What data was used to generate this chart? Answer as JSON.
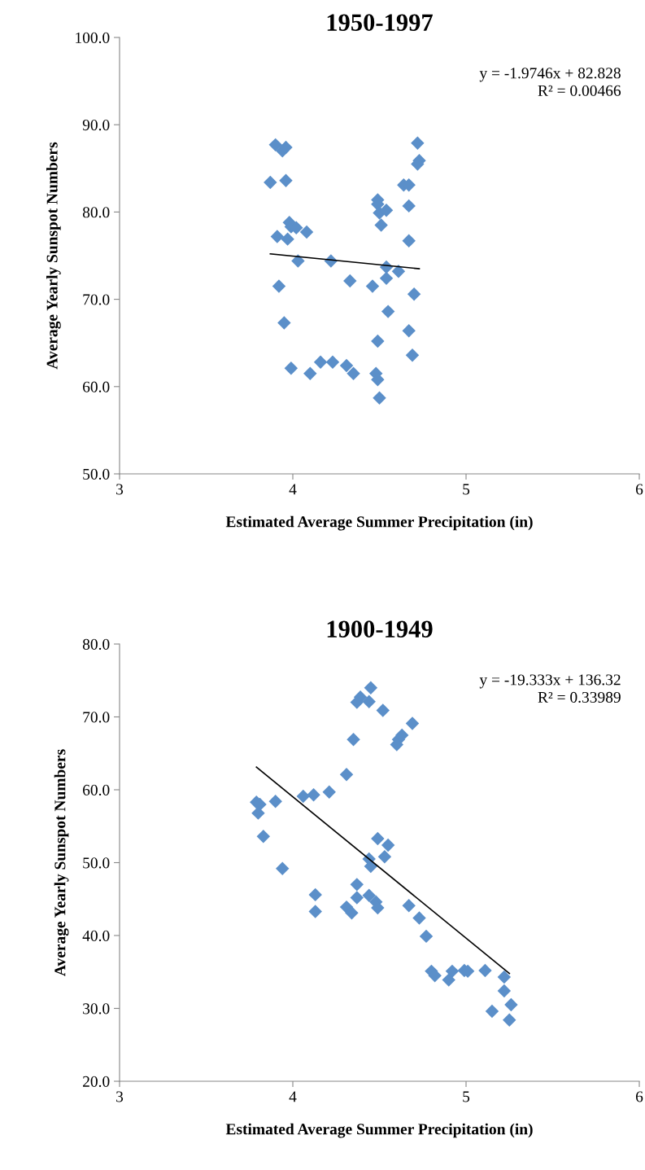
{
  "chart_data": [
    {
      "type": "scatter",
      "title": "1950-1997",
      "xlabel": "Estimated Average Summer Precipitation (in)",
      "ylabel": "Average Yearly Sunspot Numbers",
      "xlim": [
        3,
        6
      ],
      "xticks": [
        3,
        4,
        5,
        6
      ],
      "ylim": [
        50,
        100
      ],
      "yticks": [
        {
          "value": 50,
          "label": "50.0"
        },
        {
          "value": 60,
          "label": "60.0"
        },
        {
          "value": 70,
          "label": "70.0"
        },
        {
          "value": 80,
          "label": "80.0"
        },
        {
          "value": 90,
          "label": "90.0"
        },
        {
          "value": 100,
          "label": "100.0"
        }
      ],
      "grid": false,
      "legend": false,
      "marker": "diamond",
      "annotations": [
        "y = -1.9746x + 82.828",
        "R² = 0.00466"
      ],
      "series": [
        {
          "color": "#5b8fc9",
          "x": [
            3.9,
            3.94,
            3.96,
            3.87,
            3.96,
            3.98,
            3.99,
            4.02,
            4.08,
            3.91,
            3.97,
            4.03,
            4.22,
            3.92,
            4.33,
            4.46,
            3.95,
            3.99,
            4.1,
            4.16,
            4.23,
            4.31,
            4.35,
            4.48,
            4.49,
            4.5,
            4.49,
            4.55,
            4.54,
            4.54,
            4.61,
            4.51,
            4.49,
            4.49,
            4.5,
            4.54,
            4.64,
            4.67,
            4.67,
            4.67,
            4.7,
            4.67,
            4.69,
            4.72,
            4.73,
            4.72
          ],
          "values": [
            87.7,
            87.0,
            87.4,
            83.4,
            83.6,
            78.8,
            78.3,
            78.2,
            77.7,
            77.2,
            76.9,
            74.4,
            74.4,
            71.5,
            72.1,
            71.5,
            67.3,
            62.1,
            61.5,
            62.8,
            62.8,
            62.4,
            61.5,
            61.5,
            60.8,
            58.7,
            65.2,
            68.6,
            72.4,
            73.7,
            73.2,
            78.5,
            81.4,
            80.9,
            79.9,
            80.2,
            83.1,
            83.1,
            80.7,
            76.7,
            70.6,
            66.4,
            63.6,
            87.9,
            85.9,
            85.5
          ]
        },
        {
          "type": "line",
          "color": "#000000",
          "marker": "none",
          "x": [
            3.87,
            4.73
          ],
          "values": [
            75.2,
            73.5
          ]
        }
      ]
    },
    {
      "type": "scatter",
      "title": "1900-1949",
      "xlabel": "Estimated Average Summer Precipitation (in)",
      "ylabel": "Average Yearly Sunspot Numbers",
      "xlim": [
        3,
        6
      ],
      "xticks": [
        3,
        4,
        5,
        6
      ],
      "ylim": [
        20,
        80
      ],
      "yticks": [
        {
          "value": 20,
          "label": "20.0"
        },
        {
          "value": 30,
          "label": "30.0"
        },
        {
          "value": 40,
          "label": "40.0"
        },
        {
          "value": 50,
          "label": "50.0"
        },
        {
          "value": 60,
          "label": "60.0"
        },
        {
          "value": 70,
          "label": "70.0"
        },
        {
          "value": 80,
          "label": "80.0"
        }
      ],
      "grid": false,
      "legend": false,
      "marker": "diamond",
      "annotations": [
        "y = -19.333x + 136.32",
        "R² = 0.33989"
      ],
      "series": [
        {
          "color": "#5b8fc9",
          "x": [
            4.45,
            4.39,
            4.37,
            4.44,
            4.52,
            4.69,
            4.63,
            4.61,
            4.6,
            4.35,
            4.31,
            4.21,
            4.12,
            4.06,
            3.9,
            3.79,
            3.81,
            3.8,
            3.83,
            4.49,
            4.55,
            4.53,
            4.44,
            4.45,
            3.94,
            4.13,
            4.13,
            4.37,
            4.37,
            4.44,
            4.48,
            4.49,
            4.31,
            4.34,
            4.67,
            4.73,
            4.77,
            4.8,
            4.82,
            4.92,
            4.9,
            4.99,
            5.01,
            5.11,
            5.22,
            5.22,
            5.26,
            5.15,
            5.25
          ],
          "values": [
            74.0,
            72.7,
            72.0,
            72.1,
            70.9,
            69.1,
            67.5,
            66.9,
            66.2,
            66.9,
            62.1,
            59.7,
            59.3,
            59.1,
            58.4,
            58.3,
            58.0,
            56.8,
            53.6,
            53.3,
            52.4,
            50.8,
            50.5,
            49.5,
            49.2,
            45.6,
            43.3,
            47.0,
            45.2,
            45.5,
            44.6,
            43.8,
            43.9,
            43.1,
            44.1,
            42.4,
            39.9,
            35.1,
            34.5,
            35.1,
            33.9,
            35.2,
            35.1,
            35.2,
            34.3,
            32.4,
            30.5,
            29.6,
            28.4
          ]
        },
        {
          "type": "line",
          "color": "#000000",
          "marker": "none",
          "x": [
            3.79,
            5.25
          ],
          "values": [
            63.1,
            34.8
          ]
        }
      ]
    }
  ]
}
